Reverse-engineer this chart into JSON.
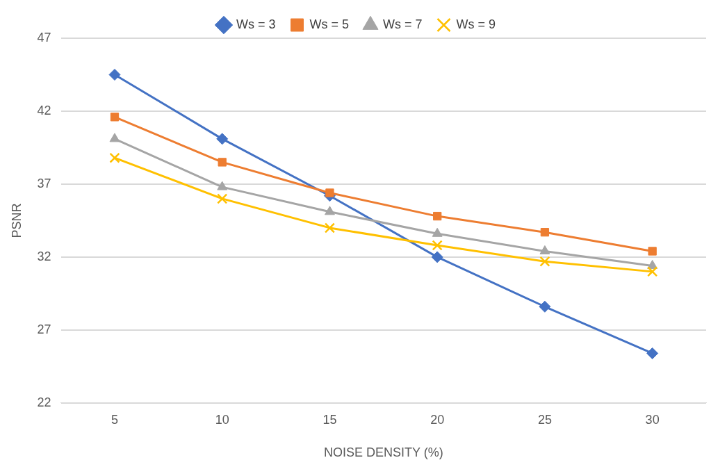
{
  "chart_data": {
    "type": "line",
    "xlabel": "NOISE DENSITY (%)",
    "ylabel": "PSNR",
    "categories": [
      "5",
      "10",
      "15",
      "20",
      "25",
      "30"
    ],
    "ylim": [
      22,
      47
    ],
    "yticks": [
      22,
      27,
      32,
      37,
      42,
      47
    ],
    "grid": "y",
    "legend": "top",
    "series": [
      {
        "name": "Ws = 3",
        "color": "#4472c4",
        "marker": "diamond",
        "values": [
          44.5,
          40.1,
          36.2,
          32.0,
          28.6,
          25.4
        ]
      },
      {
        "name": "Ws = 5",
        "color": "#ed7d31",
        "marker": "square",
        "values": [
          41.6,
          38.5,
          36.4,
          34.8,
          33.7,
          32.4
        ]
      },
      {
        "name": "Ws = 7",
        "color": "#a5a5a5",
        "marker": "triangle",
        "values": [
          40.1,
          36.8,
          35.1,
          33.6,
          32.4,
          31.4
        ]
      },
      {
        "name": "Ws = 9",
        "color": "#ffc000",
        "marker": "cross",
        "values": [
          38.8,
          36.0,
          34.0,
          32.8,
          31.7,
          31.0
        ]
      }
    ]
  }
}
